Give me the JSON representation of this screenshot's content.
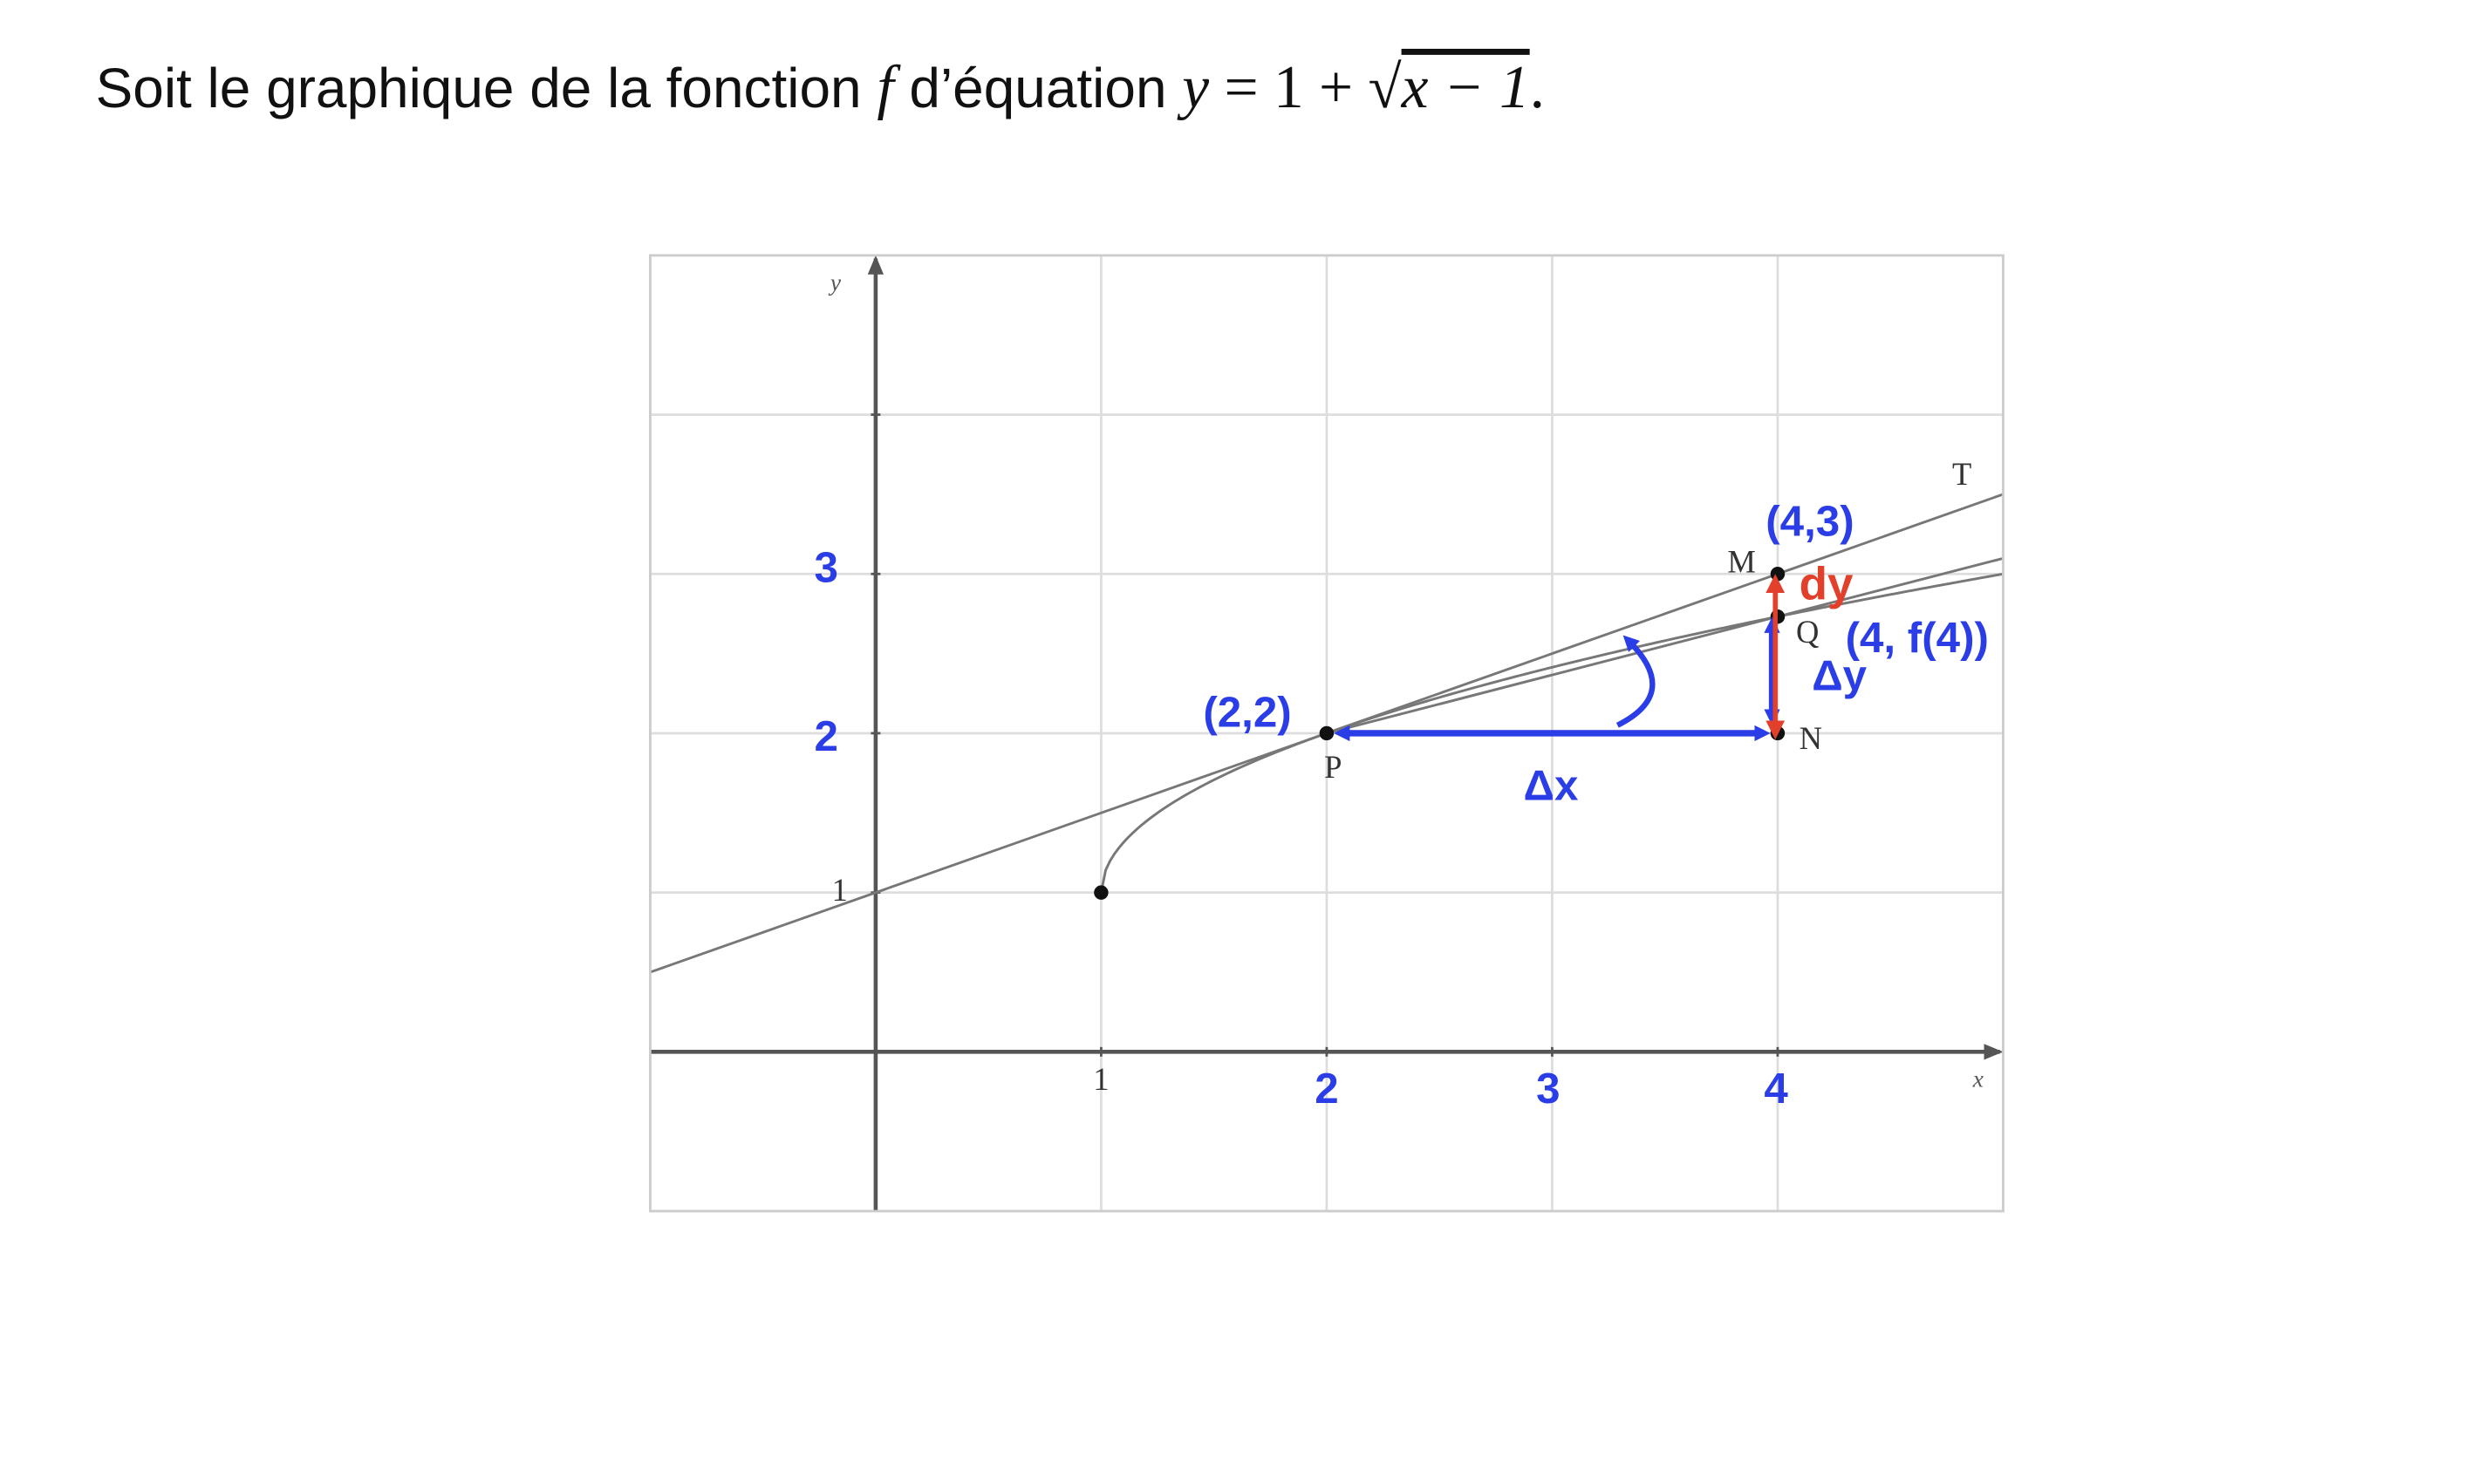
{
  "title": {
    "text": "Soit le graphique de la fonction ",
    "f": "f",
    "mid": " d’équation ",
    "y": "y",
    "eq": " = 1 + √",
    "radicand": "x − 1",
    "end": "."
  },
  "chart_data": {
    "type": "line",
    "title": "",
    "xlabel": "x",
    "ylabel": "y",
    "xlim": [
      -1,
      5
    ],
    "ylim": [
      -1,
      5
    ],
    "grid": true,
    "x_ticks_printed": [
      "1"
    ],
    "y_ticks_printed": [
      "1"
    ],
    "series": [
      {
        "role": "function",
        "expression": "1 + sqrt(x - 1)",
        "domain": [
          1,
          5
        ],
        "color": "#777777"
      },
      {
        "name": "T",
        "role": "tangent",
        "expression": "1 + x/2",
        "domain": [
          -1,
          5
        ],
        "color": "#777777"
      },
      {
        "role": "secant",
        "through": [
          [
            2,
            2
          ],
          [
            4,
            2.732
          ]
        ],
        "domain": [
          2,
          5
        ],
        "color": "#777777"
      }
    ],
    "points": [
      {
        "label": "",
        "x": 1,
        "y": 1
      },
      {
        "label": "P",
        "x": 2,
        "y": 2
      },
      {
        "label": "M",
        "x": 4,
        "y": 3
      },
      {
        "label": "Q",
        "x": 4,
        "y": 2.732
      },
      {
        "label": "N",
        "x": 4,
        "y": 2
      }
    ],
    "tangent_label": "T"
  },
  "annotations": {
    "y_ticks": [
      "3",
      "2"
    ],
    "x_ticks": [
      "2",
      "3",
      "4"
    ],
    "p_coord": "(2,2)",
    "m_coord": "(4,3)",
    "q_coord": "(4, f(4))",
    "dy": "dy",
    "delta_y": "Δy",
    "delta_x": "Δx",
    "blue": "#2a3de6",
    "red": "#e2402a"
  }
}
